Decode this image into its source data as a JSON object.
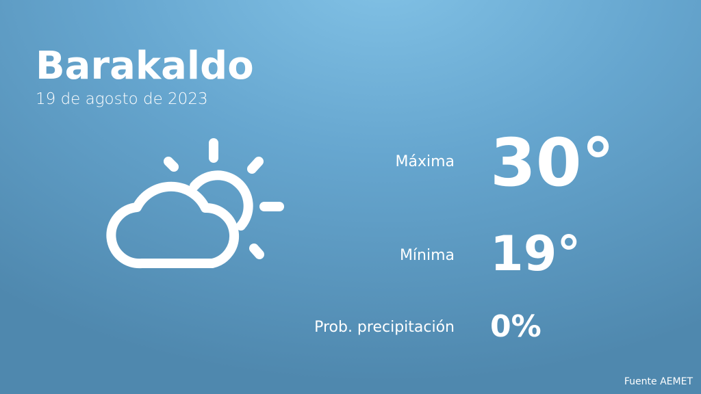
{
  "city": "Barakaldo",
  "date": "19 de agosto de 2023",
  "weather_icon": "partly-cloudy-icon",
  "max": {
    "label": "Máxima",
    "value": "30°"
  },
  "min": {
    "label": "Mínima",
    "value": "19°"
  },
  "precip": {
    "label": "Prob. precipitación",
    "value": "0%"
  },
  "source": "Fuente AEMET"
}
